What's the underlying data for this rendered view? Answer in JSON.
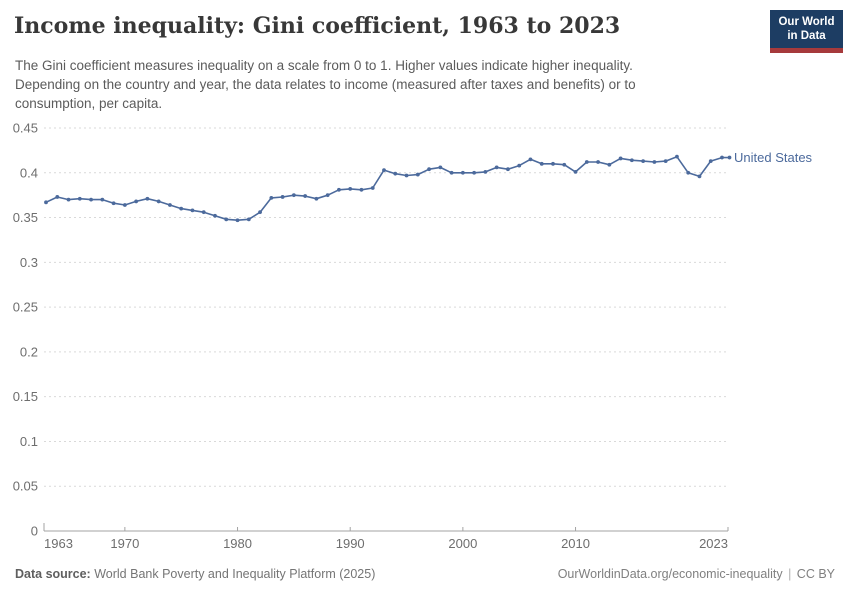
{
  "header": {
    "title": "Income inequality: Gini coefficient, 1963 to 2023",
    "subtitle_lines": [
      "The Gini coefficient measures inequality on a scale from 0 to 1. Higher values indicate higher inequality.",
      "Depending on the country and year, the data relates to income (measured after taxes and benefits) or to",
      "consumption, per capita."
    ],
    "logo": {
      "line1": "Our World",
      "line2": "in Data"
    }
  },
  "footer": {
    "source_label": "Data source:",
    "source_value": "World Bank Poverty and Inequality Platform (2025)",
    "link": "OurWorldinData.org/economic-inequality",
    "separator": "|",
    "license": "CC BY"
  },
  "colors": {
    "series_line": "#4c6a9c",
    "logo_navy": "#1d3d63",
    "logo_red": "#a63a3c",
    "gridline": "#d9d9d9",
    "axis_line": "#a3a3a3",
    "tick_text": "#6e6e6e",
    "title_text": "#383838",
    "subtitle_text": "#5b5b5b"
  },
  "chart_data": {
    "type": "line",
    "title": "Income inequality: Gini coefficient, 1963 to 2023",
    "xlabel": "",
    "ylabel": "",
    "ylim": [
      0,
      0.45
    ],
    "xlim": [
      1963,
      2023
    ],
    "grid": "horizontal-dashed",
    "legend_position": "end-of-line-label",
    "ytick_labels": [
      "0",
      "0.05",
      "0.1",
      "0.15",
      "0.2",
      "0.25",
      "0.3",
      "0.35",
      "0.4",
      "0.45"
    ],
    "xtick_labels": [
      "1963",
      "1970",
      "1980",
      "1990",
      "2000",
      "2010",
      "2023"
    ],
    "series": [
      {
        "name": "United States",
        "color": "#4c6a9c",
        "x": [
          1963,
          1964,
          1965,
          1966,
          1967,
          1968,
          1969,
          1970,
          1971,
          1972,
          1973,
          1974,
          1975,
          1976,
          1977,
          1978,
          1979,
          1980,
          1981,
          1982,
          1983,
          1984,
          1985,
          1986,
          1987,
          1988,
          1989,
          1990,
          1991,
          1992,
          1993,
          1994,
          1995,
          1996,
          1997,
          1998,
          1999,
          2000,
          2001,
          2002,
          2003,
          2004,
          2005,
          2006,
          2007,
          2008,
          2009,
          2010,
          2011,
          2012,
          2013,
          2014,
          2015,
          2016,
          2017,
          2018,
          2019,
          2020,
          2021,
          2022,
          2023
        ],
        "values": [
          0.367,
          0.373,
          0.37,
          0.371,
          0.37,
          0.37,
          0.366,
          0.364,
          0.368,
          0.371,
          0.368,
          0.364,
          0.36,
          0.358,
          0.356,
          0.352,
          0.348,
          0.347,
          0.348,
          0.356,
          0.372,
          0.373,
          0.375,
          0.374,
          0.371,
          0.375,
          0.381,
          0.382,
          0.381,
          0.383,
          0.403,
          0.399,
          0.397,
          0.398,
          0.404,
          0.406,
          0.4,
          0.4,
          0.4,
          0.401,
          0.406,
          0.404,
          0.408,
          0.415,
          0.41,
          0.41,
          0.409,
          0.401,
          0.412,
          0.412,
          0.409,
          0.416,
          0.414,
          0.413,
          0.412,
          0.413,
          0.418,
          0.4,
          0.396,
          0.413,
          0.417
        ]
      }
    ]
  }
}
